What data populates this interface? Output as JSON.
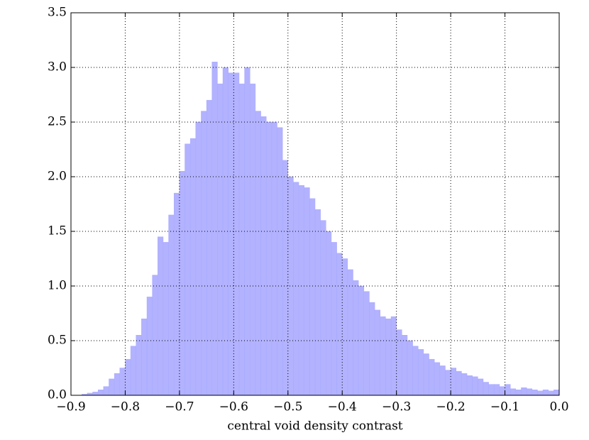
{
  "chart_data": {
    "type": "histogram",
    "xlabel": "central void density contrast",
    "color": "#aaaaff",
    "grid": true,
    "bins": [
      -0.9,
      -0.89,
      -0.88,
      -0.87,
      -0.86,
      -0.85,
      -0.84,
      -0.83,
      -0.82,
      -0.81,
      -0.8,
      -0.79,
      -0.78,
      -0.77,
      -0.76,
      -0.75,
      -0.74,
      -0.73,
      -0.72,
      -0.71,
      -0.7,
      -0.69,
      -0.68,
      -0.67,
      -0.66,
      -0.65,
      -0.64,
      -0.63,
      -0.62,
      -0.61,
      -0.6,
      -0.59,
      -0.58,
      -0.57,
      -0.56,
      -0.55,
      -0.54,
      -0.53,
      -0.52,
      -0.51,
      -0.5,
      -0.49,
      -0.48,
      -0.47,
      -0.46,
      -0.45,
      -0.44,
      -0.43,
      -0.42,
      -0.41,
      -0.4,
      -0.39,
      -0.38,
      -0.37,
      -0.36,
      -0.35,
      -0.34,
      -0.33,
      -0.32,
      -0.31,
      -0.3,
      -0.29,
      -0.28,
      -0.27,
      -0.26,
      -0.25,
      -0.24,
      -0.23,
      -0.22,
      -0.21,
      -0.2,
      -0.19,
      -0.18,
      -0.17,
      -0.16,
      -0.15,
      -0.14,
      -0.13,
      -0.12,
      -0.11,
      -0.1,
      -0.09,
      -0.08,
      -0.07,
      -0.06,
      -0.05,
      -0.04,
      -0.03,
      -0.02,
      -0.01,
      0
    ],
    "counts": [
      0,
      0,
      0.01,
      0.02,
      0.03,
      0.05,
      0.08,
      0.15,
      0.2,
      0.25,
      0.33,
      0.45,
      0.55,
      0.7,
      0.9,
      1.1,
      1.45,
      1.4,
      1.65,
      1.85,
      2.05,
      2.3,
      2.35,
      2.5,
      2.6,
      2.7,
      3.05,
      2.85,
      3.0,
      2.95,
      2.95,
      2.85,
      3.0,
      2.85,
      2.6,
      2.55,
      2.5,
      2.5,
      2.45,
      2.15,
      2.0,
      1.95,
      1.92,
      1.9,
      1.8,
      1.7,
      1.6,
      1.5,
      1.4,
      1.3,
      1.25,
      1.15,
      1.05,
      1.0,
      0.95,
      0.85,
      0.78,
      0.72,
      0.7,
      0.72,
      0.6,
      0.55,
      0.5,
      0.45,
      0.42,
      0.38,
      0.33,
      0.3,
      0.27,
      0.23,
      0.25,
      0.22,
      0.2,
      0.18,
      0.17,
      0.15,
      0.12,
      0.1,
      0.1,
      0.08,
      0.1,
      0.06,
      0.05,
      0.07,
      0.06,
      0.05,
      0.04,
      0.05,
      0.04,
      0.05
    ],
    "xlim": [
      -0.9,
      0
    ],
    "ylim": [
      0,
      3.5
    ],
    "xticks": [
      {
        "value": -0.9,
        "label": "−0.9"
      },
      {
        "value": -0.8,
        "label": "−0.8"
      },
      {
        "value": -0.7,
        "label": "−0.7"
      },
      {
        "value": -0.6,
        "label": "−0.6"
      },
      {
        "value": -0.5,
        "label": "−0.5"
      },
      {
        "value": -0.4,
        "label": "−0.4"
      },
      {
        "value": -0.3,
        "label": "−0.3"
      },
      {
        "value": -0.2,
        "label": "−0.2"
      },
      {
        "value": -0.1,
        "label": "−0.1"
      },
      {
        "value": 0,
        "label": "0.0"
      }
    ],
    "yticks": [
      {
        "value": 0,
        "label": "0.0"
      },
      0.5,
      {
        "value": 1,
        "label": "1.0"
      },
      1.5,
      {
        "value": 2,
        "label": "2.0"
      },
      2.5,
      {
        "value": 3,
        "label": "3.0"
      },
      3.5
    ]
  }
}
